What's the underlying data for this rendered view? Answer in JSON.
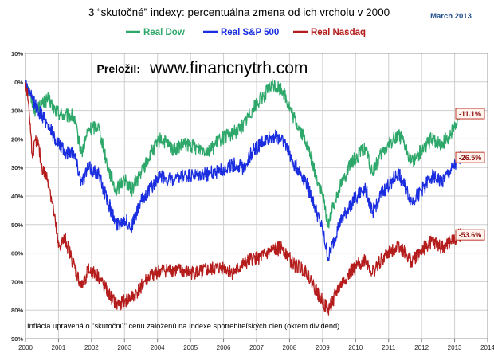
{
  "date_note": "March 2013",
  "credit": {
    "label": "Preložil:",
    "site": "www.financnytrh.com"
  },
  "chart_data": {
    "type": "line",
    "title": "3 “skutočné” indexy: percentuálna zmena od ich vrcholu v 2000",
    "footnote": "Inflácia upravená o \"skutočnú\" cenu založenú na Indexe spotrebiteľských cien (okrem dividend)",
    "y_axis": {
      "range": [
        10,
        -90
      ],
      "ticks": [
        10,
        0,
        -10,
        -20,
        -30,
        -40,
        -50,
        -60,
        -70,
        -80,
        -90
      ],
      "tick_labels": [
        "10%",
        "0%",
        "10%",
        "20%",
        "30%",
        "40%",
        "50%",
        "60%",
        "70%",
        "80%",
        "90%"
      ]
    },
    "x_axis": {
      "range": [
        2000,
        2014
      ],
      "ticks": [
        2000,
        2001,
        2002,
        2003,
        2004,
        2005,
        2006,
        2007,
        2008,
        2009,
        2010,
        2011,
        2012,
        2013,
        2014
      ],
      "tick_labels": [
        "2000",
        "2001",
        "2002",
        "2003",
        "2004",
        "2005",
        "2006",
        "2007",
        "2008",
        "2009",
        "2010",
        "2011",
        "2012",
        "2013",
        "2014"
      ]
    },
    "grid": true,
    "legend_position": "top",
    "series": [
      {
        "name": "Real Dow",
        "color": "#2ea86a",
        "x": [
          2000.0,
          2000.15,
          2000.3,
          2000.5,
          2000.7,
          2000.9,
          2001.2,
          2001.45,
          2001.7,
          2001.9,
          2002.2,
          2002.5,
          2002.75,
          2003.0,
          2003.2,
          2003.5,
          2003.8,
          2004.1,
          2004.5,
          2004.8,
          2005.2,
          2005.6,
          2005.9,
          2006.3,
          2006.6,
          2006.9,
          2007.2,
          2007.5,
          2007.8,
          2008.1,
          2008.5,
          2008.8,
          2009.0,
          2009.17,
          2009.5,
          2009.9,
          2010.3,
          2010.5,
          2010.8,
          2011.3,
          2011.7,
          2012.0,
          2012.3,
          2012.6,
          2012.9,
          2013.1,
          2013.2
        ],
        "values": [
          0,
          -5,
          -10,
          -8,
          -6,
          -10,
          -12,
          -12,
          -25,
          -17,
          -15,
          -30,
          -38,
          -34,
          -38,
          -32,
          -25,
          -20,
          -24,
          -22,
          -23,
          -24,
          -20,
          -18,
          -15,
          -9,
          -5,
          -1,
          -3,
          -12,
          -21,
          -33,
          -40,
          -50,
          -37,
          -28,
          -23,
          -32,
          -25,
          -18,
          -28,
          -24,
          -20,
          -22,
          -18,
          -13,
          -11.1
        ]
      },
      {
        "name": "Real S&P 500",
        "color": "#1a2ee0",
        "x": [
          2000.0,
          2000.15,
          2000.3,
          2000.5,
          2000.7,
          2000.9,
          2001.2,
          2001.45,
          2001.7,
          2001.9,
          2002.2,
          2002.5,
          2002.75,
          2003.0,
          2003.2,
          2003.5,
          2003.8,
          2004.1,
          2004.5,
          2004.8,
          2005.2,
          2005.6,
          2005.9,
          2006.3,
          2006.6,
          2006.9,
          2007.2,
          2007.5,
          2007.8,
          2008.1,
          2008.5,
          2008.8,
          2009.0,
          2009.17,
          2009.5,
          2009.9,
          2010.3,
          2010.5,
          2010.8,
          2011.3,
          2011.7,
          2012.0,
          2012.3,
          2012.6,
          2012.9,
          2013.1,
          2013.2
        ],
        "values": [
          0,
          -5,
          -8,
          -12,
          -15,
          -20,
          -25,
          -24,
          -35,
          -30,
          -32,
          -42,
          -50,
          -48,
          -51,
          -42,
          -37,
          -33,
          -35,
          -33,
          -33,
          -32,
          -31,
          -29,
          -30,
          -24,
          -21,
          -19,
          -20,
          -28,
          -35,
          -45,
          -52,
          -62,
          -50,
          -42,
          -37,
          -46,
          -39,
          -32,
          -42,
          -38,
          -33,
          -35,
          -31,
          -28,
          -26.5
        ]
      },
      {
        "name": "Real Nasdaq",
        "color": "#b51c1c",
        "x": [
          2000.0,
          2000.1,
          2000.2,
          2000.35,
          2000.5,
          2000.7,
          2000.85,
          2001.0,
          2001.2,
          2001.4,
          2001.7,
          2001.9,
          2002.2,
          2002.5,
          2002.75,
          2003.0,
          2003.3,
          2003.6,
          2003.9,
          2004.2,
          2004.6,
          2005.0,
          2005.5,
          2006.0,
          2006.3,
          2006.6,
          2006.9,
          2007.2,
          2007.5,
          2007.8,
          2008.1,
          2008.5,
          2008.8,
          2009.0,
          2009.17,
          2009.5,
          2009.9,
          2010.3,
          2010.5,
          2010.8,
          2011.3,
          2011.7,
          2012.0,
          2012.3,
          2012.6,
          2012.9,
          2013.1,
          2013.2
        ],
        "values": [
          0,
          -8,
          -25,
          -20,
          -30,
          -35,
          -45,
          -58,
          -55,
          -62,
          -72,
          -66,
          -68,
          -74,
          -78,
          -77,
          -75,
          -70,
          -67,
          -66,
          -66,
          -67,
          -66,
          -65,
          -67,
          -64,
          -62,
          -61,
          -59,
          -58,
          -64,
          -66,
          -73,
          -77,
          -80,
          -72,
          -66,
          -62,
          -67,
          -62,
          -57,
          -63,
          -59,
          -56,
          -58,
          -56,
          -54,
          -53.6
        ]
      }
    ],
    "end_labels": [
      "-11.1%",
      "-26.5%",
      "-53.6%"
    ]
  }
}
